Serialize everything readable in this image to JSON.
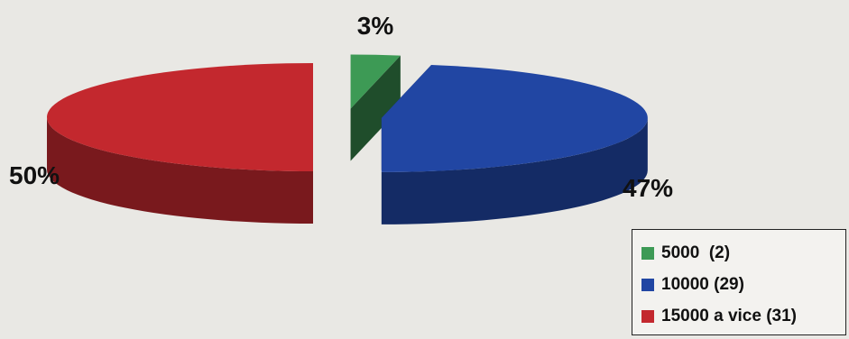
{
  "chart_data": {
    "type": "pie",
    "style": "3d-exploded",
    "slices": [
      {
        "label": "5000  (2)",
        "value": 3,
        "data_label": "3%",
        "color": "#3d9a55"
      },
      {
        "label": "10000 (29)",
        "value": 47,
        "data_label": "47%",
        "color": "#2146a3"
      },
      {
        "label": "15000 a vice (31)",
        "value": 50,
        "data_label": "50%",
        "color": "#c3282e"
      }
    ],
    "legend_placement": "bottom-right",
    "title": ""
  }
}
